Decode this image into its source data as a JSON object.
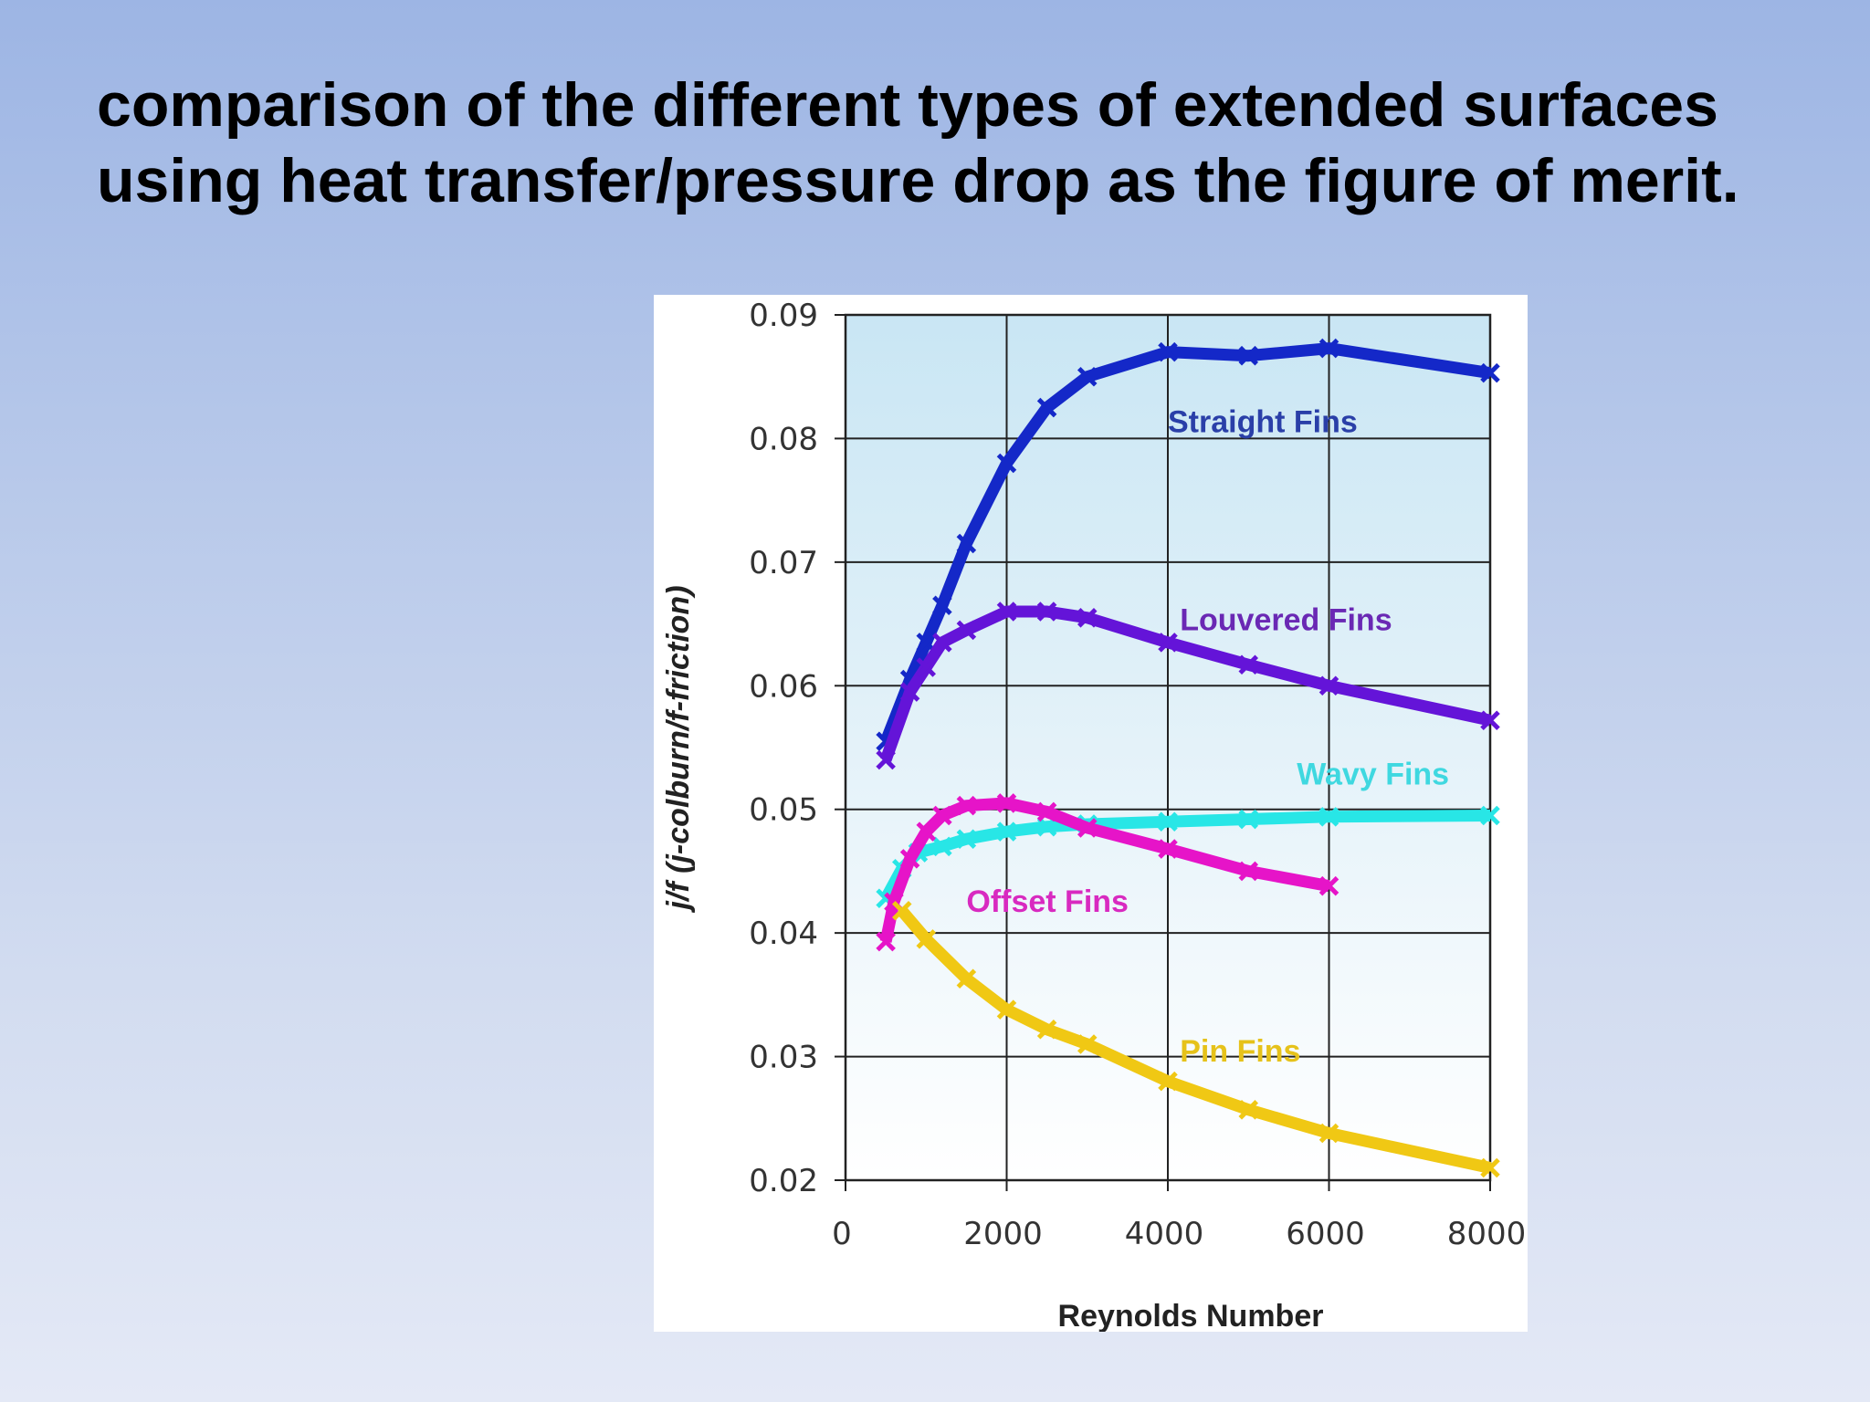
{
  "slide": {
    "title": "comparison of the different types of extended surfaces using heat transfer/pressure drop as the figure of merit."
  },
  "chart_data": {
    "type": "line",
    "title": "",
    "xlabel": "Reynolds Number",
    "ylabel": "j/f (j-colburn/f-friction)",
    "xlim": [
      0,
      8000
    ],
    "ylim": [
      0.02,
      0.09
    ],
    "xticks": [
      "0",
      "2000",
      "4000",
      "6000",
      "8000"
    ],
    "yticks": [
      "0.02",
      "0.03",
      "0.04",
      "0.05",
      "0.06",
      "0.07",
      "0.08",
      "0.09"
    ],
    "grid": true,
    "series": [
      {
        "name": "Straight Fins",
        "color": "#1428c8",
        "x": [
          500,
          800,
          1000,
          1200,
          1500,
          2000,
          2500,
          3000,
          4000,
          5000,
          6000,
          8000
        ],
        "y": [
          0.0555,
          0.0605,
          0.0635,
          0.0665,
          0.0715,
          0.078,
          0.0825,
          0.085,
          0.087,
          0.0867,
          0.0873,
          0.0853
        ]
      },
      {
        "name": "Louvered Fins",
        "color": "#6414d8",
        "x": [
          500,
          800,
          1000,
          1200,
          1500,
          2000,
          2500,
          3000,
          4000,
          5000,
          6000,
          8000
        ],
        "y": [
          0.054,
          0.0595,
          0.0615,
          0.0635,
          0.0645,
          0.066,
          0.066,
          0.0655,
          0.0635,
          0.0617,
          0.06,
          0.0572
        ]
      },
      {
        "name": "Wavy Fins",
        "color": "#28e6e6",
        "x": [
          500,
          700,
          900,
          1200,
          1500,
          2000,
          2500,
          3000,
          4000,
          5000,
          6000,
          8000
        ],
        "y": [
          0.0428,
          0.0452,
          0.0465,
          0.047,
          0.0476,
          0.0482,
          0.0486,
          0.0488,
          0.049,
          0.0492,
          0.0494,
          0.0495
        ]
      },
      {
        "name": "Offset Fins",
        "color": "#e614c8",
        "x": [
          500,
          600,
          800,
          1000,
          1200,
          1500,
          2000,
          2500,
          3000,
          4000,
          5000,
          6000
        ],
        "y": [
          0.0393,
          0.0425,
          0.046,
          0.0482,
          0.0495,
          0.0503,
          0.0505,
          0.0498,
          0.0485,
          0.0468,
          0.045,
          0.0438
        ]
      },
      {
        "name": "Pin Fins",
        "color": "#f0c814",
        "x": [
          700,
          1000,
          1500,
          2000,
          2500,
          3000,
          4000,
          5000,
          6000,
          8000
        ],
        "y": [
          0.0418,
          0.0395,
          0.0363,
          0.0338,
          0.0322,
          0.031,
          0.028,
          0.0257,
          0.0238,
          0.021
        ]
      }
    ],
    "labels": [
      "Straight Fins",
      "Louvered Fins",
      "Wavy Fins",
      "Offset Fins",
      "Pin Fins"
    ]
  }
}
